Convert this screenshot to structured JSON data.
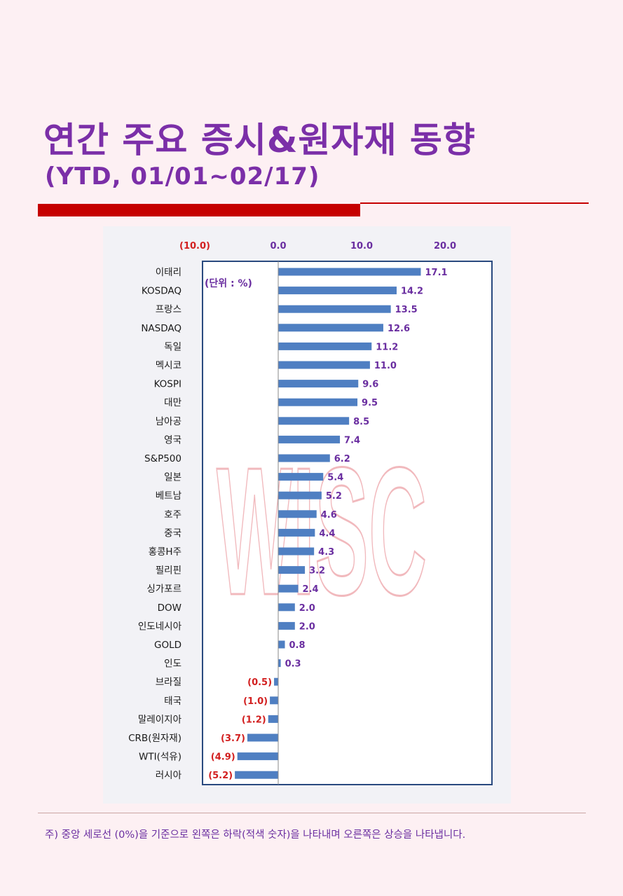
{
  "page": {
    "title": "연간 주요 증시&원자재 동향",
    "subtitle": "(YTD, 01/01~02/17)",
    "footnote": "주) 중앙 세로선 (0%)을 기준으로 왼쪽은 하락(적색 숫자)을 나타내며 오른쪽은 상승을 나타냅니다."
  },
  "chart_data": {
    "type": "bar",
    "orientation": "horizontal",
    "unit_label": "(단위 : %)",
    "watermark": "WISC",
    "xlim": [
      -10,
      25
    ],
    "x_ticks": [
      {
        "value": -10,
        "label": "(10.0)"
      },
      {
        "value": 0,
        "label": "0.0"
      },
      {
        "value": 10,
        "label": "10.0"
      },
      {
        "value": 20,
        "label": "20.0"
      }
    ],
    "categories": [
      "이태리",
      "KOSDAQ",
      "프랑스",
      "NASDAQ",
      "독일",
      "멕시코",
      "KOSPI",
      "대만",
      "남아공",
      "영국",
      "S&P500",
      "일본",
      "베트남",
      "호주",
      "중국",
      "홍콩H주",
      "필리핀",
      "싱가포르",
      "DOW",
      "인도네시아",
      "GOLD",
      "인도",
      "브라질",
      "태국",
      "말레이지아",
      "CRB(원자재)",
      "WTI(석유)",
      "러시아"
    ],
    "values": [
      17.1,
      14.2,
      13.5,
      12.6,
      11.2,
      11.0,
      9.6,
      9.5,
      8.5,
      7.4,
      6.2,
      5.4,
      5.2,
      4.6,
      4.4,
      4.3,
      3.2,
      2.4,
      2.0,
      2.0,
      0.8,
      0.3,
      -0.5,
      -1.0,
      -1.2,
      -3.7,
      -4.9,
      -5.2
    ],
    "value_labels": [
      "17.1",
      "14.2",
      "13.5",
      "12.6",
      "11.2",
      "11.0",
      "9.6",
      "9.5",
      "8.5",
      "7.4",
      "6.2",
      "5.4",
      "5.2",
      "4.6",
      "4.4",
      "4.3",
      "3.2",
      "2.4",
      "2.0",
      "2.0",
      "0.8",
      "0.3",
      "(0.5)",
      "(1.0)",
      "(1.2)",
      "(3.7)",
      "(4.9)",
      "(5.2)"
    ],
    "colors": {
      "bar": "#4f7fc2",
      "positive_label": "#6a2ea0",
      "negative_label": "#d21f1f",
      "frame": "#2a4a7f",
      "watermark": "#f1b9bd"
    }
  }
}
